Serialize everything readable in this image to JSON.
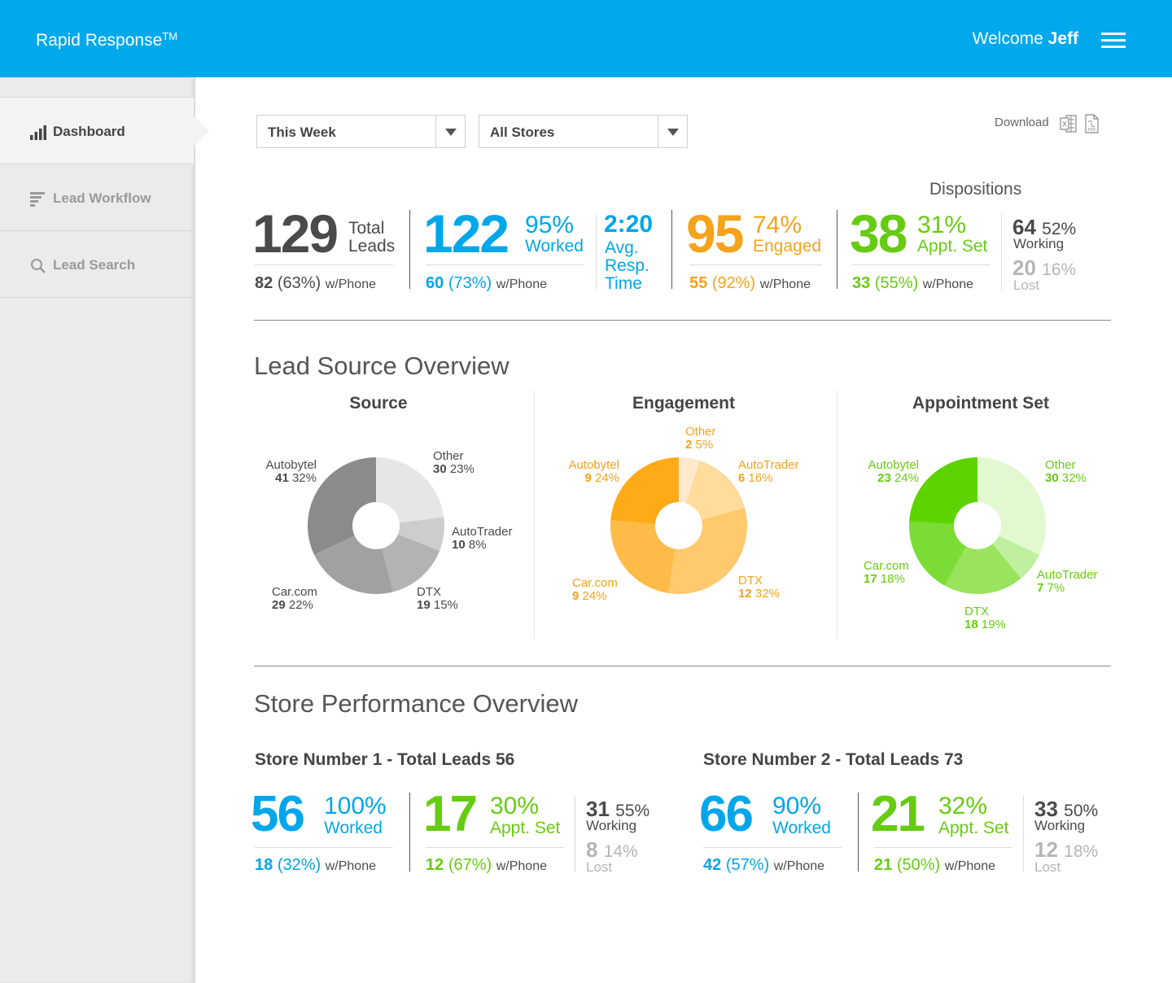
{
  "header": {
    "brand": "Rapid Response",
    "brand_mark": "TM",
    "welcome": "Welcome",
    "user": "Jeff"
  },
  "sidebar": {
    "items": [
      {
        "label": "Dashboard",
        "icon": "bar-chart-icon",
        "active": true
      },
      {
        "label": "Lead Workflow",
        "icon": "workflow-lines-icon",
        "active": false
      },
      {
        "label": "Lead Search",
        "icon": "search-icon",
        "active": false
      }
    ]
  },
  "filters": {
    "period": "This Week",
    "store": "All Stores"
  },
  "download": {
    "label": "Download",
    "formats": [
      "excel-icon",
      "pdf-icon"
    ]
  },
  "summary": {
    "dispositions_title": "Dispositions",
    "total": {
      "value": "129",
      "label1": "Total",
      "label2": "Leads",
      "sub_value": "82",
      "sub_pct": "(63%)",
      "sub_label": "w/Phone"
    },
    "worked": {
      "value": "122",
      "pct": "95%",
      "label": "Worked",
      "sub_value": "60",
      "sub_pct": "(73%)",
      "sub_label": "w/Phone"
    },
    "resp": {
      "value": "2:20",
      "line1": "Avg.",
      "line2": "Resp.",
      "line3": "Time"
    },
    "engaged": {
      "value": "95",
      "pct": "74%",
      "label": "Engaged",
      "sub_value": "55",
      "sub_pct": "(92%)",
      "sub_label": "w/Phone"
    },
    "appt": {
      "value": "38",
      "pct": "31%",
      "label": "Appt. Set",
      "sub_value": "33",
      "sub_pct": "(55%)",
      "sub_label": "w/Phone"
    },
    "working": {
      "value": "64",
      "pct": "52%",
      "label": "Working"
    },
    "lost": {
      "value": "20",
      "pct": "16%",
      "label": "Lost"
    }
  },
  "lead_source": {
    "title": "Lead Source Overview",
    "charts": [
      {
        "title": "Source",
        "slices": [
          {
            "name": "Other",
            "count": "30",
            "pct": "23%",
            "value": 23,
            "color": "#e6e6e6"
          },
          {
            "name": "AutoTrader",
            "count": "10",
            "pct": "8%",
            "value": 8,
            "color": "#cdcdcd"
          },
          {
            "name": "DTX",
            "count": "19",
            "pct": "15%",
            "value": 15,
            "color": "#b3b3b3"
          },
          {
            "name": "Car.com",
            "count": "29",
            "pct": "22%",
            "value": 22,
            "color": "#a1a1a1"
          },
          {
            "name": "Autobytel",
            "count": "41",
            "pct": "32%",
            "value": 32,
            "color": "#8b8b8b"
          }
        ]
      },
      {
        "title": "Engagement",
        "slices": [
          {
            "name": "Other",
            "count": "2",
            "pct": "5%",
            "value": 5,
            "color": "#ffe9cc"
          },
          {
            "name": "AutoTrader",
            "count": "6",
            "pct": "16%",
            "value": 16,
            "color": "#ffdb9c"
          },
          {
            "name": "DTX",
            "count": "12",
            "pct": "32%",
            "value": 32,
            "color": "#ffc96e"
          },
          {
            "name": "Car.com",
            "count": "9",
            "pct": "24%",
            "value": 24,
            "color": "#ffbb48"
          },
          {
            "name": "Autobytel",
            "count": "9",
            "pct": "24%",
            "value": 24,
            "color": "#ffab18"
          }
        ]
      },
      {
        "title": "Appointment Set",
        "slices": [
          {
            "name": "Other",
            "count": "30",
            "pct": "32%",
            "value": 32,
            "color": "#e2f8d0"
          },
          {
            "name": "AutoTrader",
            "count": "7",
            "pct": "7%",
            "value": 7,
            "color": "#bff0a0"
          },
          {
            "name": "DTX",
            "count": "18",
            "pct": "19%",
            "value": 19,
            "color": "#99e45c"
          },
          {
            "name": "Car.com",
            "count": "17",
            "pct": "18%",
            "value": 18,
            "color": "#7bdc35"
          },
          {
            "name": "Autobytel",
            "count": "23",
            "pct": "24%",
            "value": 24,
            "color": "#5dd400"
          }
        ]
      }
    ]
  },
  "store_perf": {
    "title": "Store Performance Overview",
    "stores": [
      {
        "title": "Store Number 1 - Total Leads 56",
        "worked": {
          "value": "56",
          "pct": "100%",
          "label": "Worked",
          "sub_value": "18",
          "sub_pct": "(32%)",
          "sub_label": "w/Phone"
        },
        "appt": {
          "value": "17",
          "pct": "30%",
          "label": "Appt. Set",
          "sub_value": "12",
          "sub_pct": "(67%)",
          "sub_label": "w/Phone"
        },
        "working": {
          "value": "31",
          "pct": "55%",
          "label": "Working"
        },
        "lost": {
          "value": "8",
          "pct": "14%",
          "label": "Lost"
        }
      },
      {
        "title": "Store Number 2 - Total Leads 73",
        "worked": {
          "value": "66",
          "pct": "90%",
          "label": "Worked",
          "sub_value": "42",
          "sub_pct": "(57%)",
          "sub_label": "w/Phone"
        },
        "appt": {
          "value": "21",
          "pct": "32%",
          "label": "Appt. Set",
          "sub_value": "21",
          "sub_pct": "(50%)",
          "sub_label": "w/Phone"
        },
        "working": {
          "value": "33",
          "pct": "50%",
          "label": "Working"
        },
        "lost": {
          "value": "12",
          "pct": "18%",
          "label": "Lost"
        }
      }
    ]
  }
}
